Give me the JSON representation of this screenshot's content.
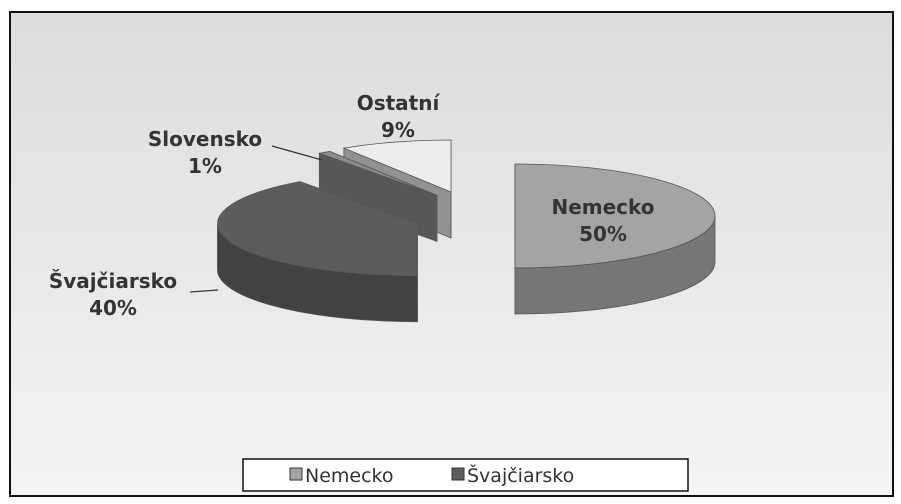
{
  "chart_data": {
    "type": "pie3d",
    "categories": [
      "Nemecko",
      "Švajčiarsko",
      "Slovensko",
      "Ostatní"
    ],
    "values": [
      50,
      40,
      1,
      9
    ],
    "value_labels": [
      "50%",
      "40%",
      "1%",
      "9%"
    ],
    "colors": [
      "#a4a4a4",
      "#5c5c5c",
      "#8c8c8c",
      "#ececec"
    ],
    "legend": "bottom"
  }
}
